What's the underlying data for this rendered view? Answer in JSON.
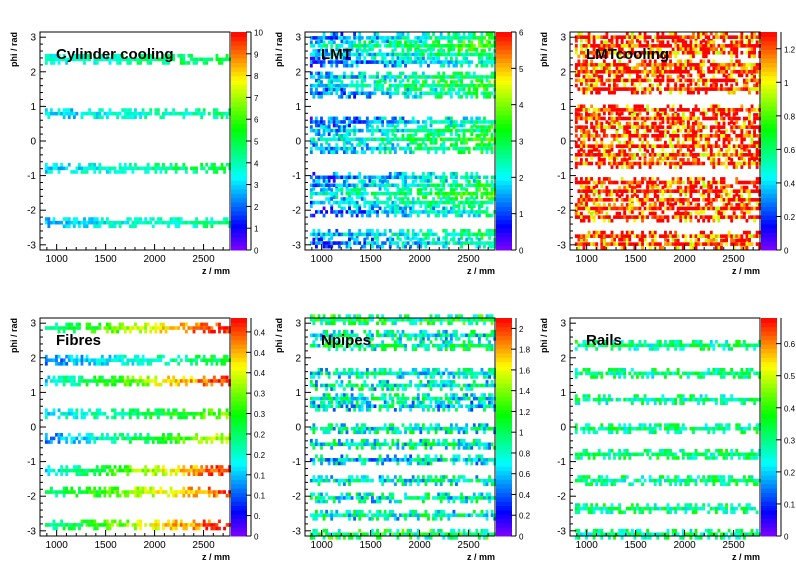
{
  "chart_data": [
    {
      "type": "heatmap",
      "title": "Cylinder cooling",
      "xlabel": "z / mm",
      "ylabel": "phi / rad",
      "xlim": [
        830,
        2770
      ],
      "ylim": [
        -3.15,
        3.15
      ],
      "xticks": [
        1000,
        1500,
        2000,
        2500
      ],
      "yticks": [
        -3,
        -2,
        -1,
        0,
        1,
        2,
        3
      ],
      "zlim": [
        0,
        10
      ],
      "zticks": [
        0,
        1,
        2,
        3,
        4,
        5,
        6,
        7,
        8,
        9,
        10
      ],
      "stripes": [
        {
          "phi": 2.36,
          "v0": 3.5,
          "v1": 5.0,
          "noise": 0.8
        },
        {
          "phi": 0.79,
          "v0": 3.0,
          "v1": 4.5,
          "noise": 0.8
        },
        {
          "phi": -0.79,
          "v0": 3.0,
          "v1": 5.0,
          "noise": 0.8
        },
        {
          "phi": -2.36,
          "v0": 3.0,
          "v1": 4.5,
          "noise": 0.8
        }
      ]
    },
    {
      "type": "heatmap",
      "title": "LMT",
      "xlabel": "z / mm",
      "ylabel": "phi / rad",
      "xlim": [
        830,
        2770
      ],
      "ylim": [
        -3.15,
        3.15
      ],
      "xticks": [
        1000,
        1500,
        2000,
        2500
      ],
      "yticks": [
        -3,
        -2,
        -1,
        0,
        1,
        2,
        3
      ],
      "zlim": [
        0,
        6
      ],
      "zticks": [
        0,
        1,
        2,
        3,
        4,
        5,
        6
      ],
      "stripes": [
        {
          "phi": 2.98,
          "v0": 1.0,
          "v1": 3.0,
          "noise": 0.8
        },
        {
          "phi": 2.75,
          "v0": 2.0,
          "v1": 3.5,
          "noise": 0.8
        },
        {
          "phi": 2.5,
          "v0": 1.5,
          "v1": 3.0,
          "noise": 0.8
        },
        {
          "phi": 2.28,
          "v0": 1.0,
          "v1": 2.5,
          "noise": 0.8
        },
        {
          "phi": 1.85,
          "v0": 1.5,
          "v1": 3.0,
          "noise": 0.8
        },
        {
          "phi": 1.6,
          "v0": 2.0,
          "v1": 3.5,
          "noise": 0.8
        },
        {
          "phi": 1.38,
          "v0": 1.0,
          "v1": 3.0,
          "noise": 0.8
        },
        {
          "phi": 0.55,
          "v0": 1.0,
          "v1": 2.5,
          "noise": 0.8
        },
        {
          "phi": 0.3,
          "v0": 1.5,
          "v1": 3.0,
          "noise": 0.8
        },
        {
          "phi": 0.05,
          "v0": 2.0,
          "v1": 3.5,
          "noise": 0.8
        },
        {
          "phi": -0.22,
          "v0": 1.5,
          "v1": 3.0,
          "noise": 0.8
        },
        {
          "phi": -1.05,
          "v0": 1.0,
          "v1": 2.5,
          "noise": 0.8
        },
        {
          "phi": -1.28,
          "v0": 1.5,
          "v1": 3.0,
          "noise": 0.8
        },
        {
          "phi": -1.52,
          "v0": 2.0,
          "v1": 3.5,
          "noise": 0.8
        },
        {
          "phi": -1.78,
          "v0": 1.5,
          "v1": 3.0,
          "noise": 0.8
        },
        {
          "phi": -2.05,
          "v0": 1.0,
          "v1": 2.5,
          "noise": 0.8
        },
        {
          "phi": -2.7,
          "v0": 1.5,
          "v1": 3.0,
          "noise": 0.8
        },
        {
          "phi": -2.95,
          "v0": 1.0,
          "v1": 2.5,
          "noise": 0.8
        }
      ]
    },
    {
      "type": "heatmap",
      "title": "LMTcooling",
      "xlabel": "z / mm",
      "ylabel": "phi / rad",
      "xlim": [
        830,
        2770
      ],
      "ylim": [
        -3.15,
        3.15
      ],
      "xticks": [
        1000,
        1500,
        2000,
        2500
      ],
      "yticks": [
        -3,
        -2,
        -1,
        0,
        1,
        2,
        3
      ],
      "zlim": [
        0,
        1.3
      ],
      "zticks": [
        0,
        0.2,
        0.4,
        0.6,
        0.8,
        1,
        1.2
      ],
      "stripes": [
        {
          "phi": 3.0,
          "v0": 1.3,
          "v1": 1.3,
          "noise": 0.4
        },
        {
          "phi": 2.75,
          "v0": 1.3,
          "v1": 1.3,
          "noise": 0.4
        },
        {
          "phi": 2.55,
          "v0": 1.3,
          "v1": 1.3,
          "noise": 0.4
        },
        {
          "phi": 2.2,
          "v0": 1.3,
          "v1": 1.3,
          "noise": 0.4
        },
        {
          "phi": 2.0,
          "v0": 1.3,
          "v1": 1.3,
          "noise": 0.4
        },
        {
          "phi": 1.75,
          "v0": 1.3,
          "v1": 1.3,
          "noise": 0.4
        },
        {
          "phi": 1.5,
          "v0": 1.3,
          "v1": 1.3,
          "noise": 0.4
        },
        {
          "phi": 0.9,
          "v0": 1.3,
          "v1": 1.3,
          "noise": 0.4
        },
        {
          "phi": 0.65,
          "v0": 1.3,
          "v1": 1.3,
          "noise": 0.4
        },
        {
          "phi": 0.4,
          "v0": 1.3,
          "v1": 1.3,
          "noise": 0.4
        },
        {
          "phi": 0.15,
          "v0": 1.3,
          "v1": 1.3,
          "noise": 0.4
        },
        {
          "phi": -0.15,
          "v0": 1.3,
          "v1": 1.3,
          "noise": 0.4
        },
        {
          "phi": -0.4,
          "v0": 1.3,
          "v1": 1.3,
          "noise": 0.4
        },
        {
          "phi": -0.65,
          "v0": 1.3,
          "v1": 1.3,
          "noise": 0.4
        },
        {
          "phi": -1.2,
          "v0": 1.3,
          "v1": 1.3,
          "noise": 0.4
        },
        {
          "phi": -1.45,
          "v0": 1.3,
          "v1": 1.3,
          "noise": 0.4
        },
        {
          "phi": -1.7,
          "v0": 1.3,
          "v1": 1.3,
          "noise": 0.4
        },
        {
          "phi": -1.95,
          "v0": 1.3,
          "v1": 1.3,
          "noise": 0.4
        },
        {
          "phi": -2.2,
          "v0": 1.3,
          "v1": 1.3,
          "noise": 0.4
        },
        {
          "phi": -2.75,
          "v0": 1.3,
          "v1": 1.3,
          "noise": 0.4
        },
        {
          "phi": -2.98,
          "v0": 1.3,
          "v1": 1.3,
          "noise": 0.4
        }
      ]
    },
    {
      "type": "heatmap",
      "title": "Fibres",
      "xlabel": "z / mm",
      "ylabel": "phi / rad",
      "xlim": [
        830,
        2770
      ],
      "ylim": [
        -3.15,
        3.15
      ],
      "xticks": [
        1000,
        1500,
        2000,
        2500
      ],
      "yticks": [
        -3,
        -2,
        -1,
        0,
        1,
        2,
        3
      ],
      "zlim": [
        0,
        0.47
      ],
      "zticks": [
        "0",
        "0.",
        "0.1",
        "0.1",
        "0.2",
        "0.2",
        "0.3",
        "0.3",
        "0.4",
        "0.4",
        "0.4"
      ],
      "stripes": [
        {
          "phi": 2.86,
          "v0": 0.2,
          "v1": 0.47,
          "noise": 0.04
        },
        {
          "phi": 1.93,
          "v0": 0.1,
          "v1": 0.25,
          "noise": 0.04
        },
        {
          "phi": 1.33,
          "v0": 0.15,
          "v1": 0.47,
          "noise": 0.04
        },
        {
          "phi": 0.38,
          "v0": 0.15,
          "v1": 0.3,
          "noise": 0.04
        },
        {
          "phi": -0.33,
          "v0": 0.1,
          "v1": 0.35,
          "noise": 0.04
        },
        {
          "phi": -1.26,
          "v0": 0.15,
          "v1": 0.47,
          "noise": 0.04
        },
        {
          "phi": -1.88,
          "v0": 0.2,
          "v1": 0.45,
          "noise": 0.04
        },
        {
          "phi": -2.83,
          "v0": 0.2,
          "v1": 0.47,
          "noise": 0.04
        }
      ]
    },
    {
      "type": "heatmap",
      "title": "Npipes",
      "xlabel": "z / mm",
      "ylabel": "phi / rad",
      "xlim": [
        830,
        2770
      ],
      "ylim": [
        -3.15,
        3.15
      ],
      "xticks": [
        1000,
        1500,
        2000,
        2500
      ],
      "yticks": [
        -3,
        -2,
        -1,
        0,
        1,
        2,
        3
      ],
      "zlim": [
        0,
        2.1
      ],
      "zticks": [
        0,
        0.2,
        0.4,
        0.6,
        0.8,
        1,
        1.2,
        1.4,
        1.6,
        1.8,
        2
      ],
      "stripes": [
        {
          "phi": 3.1,
          "v0": 1.0,
          "v1": 1.0,
          "noise": 0.4
        },
        {
          "phi": 2.65,
          "v0": 0.8,
          "v1": 0.8,
          "noise": 0.4
        },
        {
          "phi": 2.35,
          "v0": 0.9,
          "v1": 0.9,
          "noise": 0.4
        },
        {
          "phi": 1.55,
          "v0": 0.8,
          "v1": 0.8,
          "noise": 0.4
        },
        {
          "phi": 1.2,
          "v0": 0.8,
          "v1": 0.8,
          "noise": 0.4
        },
        {
          "phi": 0.82,
          "v0": 0.8,
          "v1": 0.8,
          "noise": 0.4
        },
        {
          "phi": 0.6,
          "v0": 0.7,
          "v1": 0.7,
          "noise": 0.4
        },
        {
          "phi": -0.05,
          "v0": 0.8,
          "v1": 0.8,
          "noise": 0.4
        },
        {
          "phi": -0.5,
          "v0": 0.8,
          "v1": 0.8,
          "noise": 0.4
        },
        {
          "phi": -0.95,
          "v0": 0.7,
          "v1": 0.7,
          "noise": 0.4
        },
        {
          "phi": -1.55,
          "v0": 0.8,
          "v1": 0.8,
          "noise": 0.4
        },
        {
          "phi": -2.05,
          "v0": 0.8,
          "v1": 0.8,
          "noise": 0.4
        },
        {
          "phi": -2.55,
          "v0": 0.8,
          "v1": 0.8,
          "noise": 0.4
        },
        {
          "phi": -3.1,
          "v0": 1.0,
          "v1": 1.0,
          "noise": 0.4
        }
      ]
    },
    {
      "type": "heatmap",
      "title": "Rails",
      "xlabel": "z / mm",
      "ylabel": "phi / rad",
      "xlim": [
        830,
        2770
      ],
      "ylim": [
        -3.15,
        3.15
      ],
      "xticks": [
        1000,
        1500,
        2000,
        2500
      ],
      "yticks": [
        -3,
        -2,
        -1,
        0,
        1,
        2,
        3
      ],
      "zlim": [
        0,
        0.68
      ],
      "zticks": [
        0,
        0.1,
        0.2,
        0.3,
        0.4,
        0.5,
        0.6
      ],
      "stripes": [
        {
          "phi": 2.36,
          "v0": 0.3,
          "v1": 0.3,
          "noise": 0.1
        },
        {
          "phi": 1.55,
          "v0": 0.3,
          "v1": 0.3,
          "noise": 0.1
        },
        {
          "phi": 0.79,
          "v0": 0.3,
          "v1": 0.3,
          "noise": 0.1
        },
        {
          "phi": -0.05,
          "v0": 0.3,
          "v1": 0.3,
          "noise": 0.1
        },
        {
          "phi": -0.79,
          "v0": 0.3,
          "v1": 0.3,
          "noise": 0.1
        },
        {
          "phi": -1.55,
          "v0": 0.3,
          "v1": 0.3,
          "noise": 0.1
        },
        {
          "phi": -2.36,
          "v0": 0.3,
          "v1": 0.3,
          "noise": 0.1
        },
        {
          "phi": -3.1,
          "v0": 0.3,
          "v1": 0.3,
          "noise": 0.1
        }
      ]
    }
  ]
}
